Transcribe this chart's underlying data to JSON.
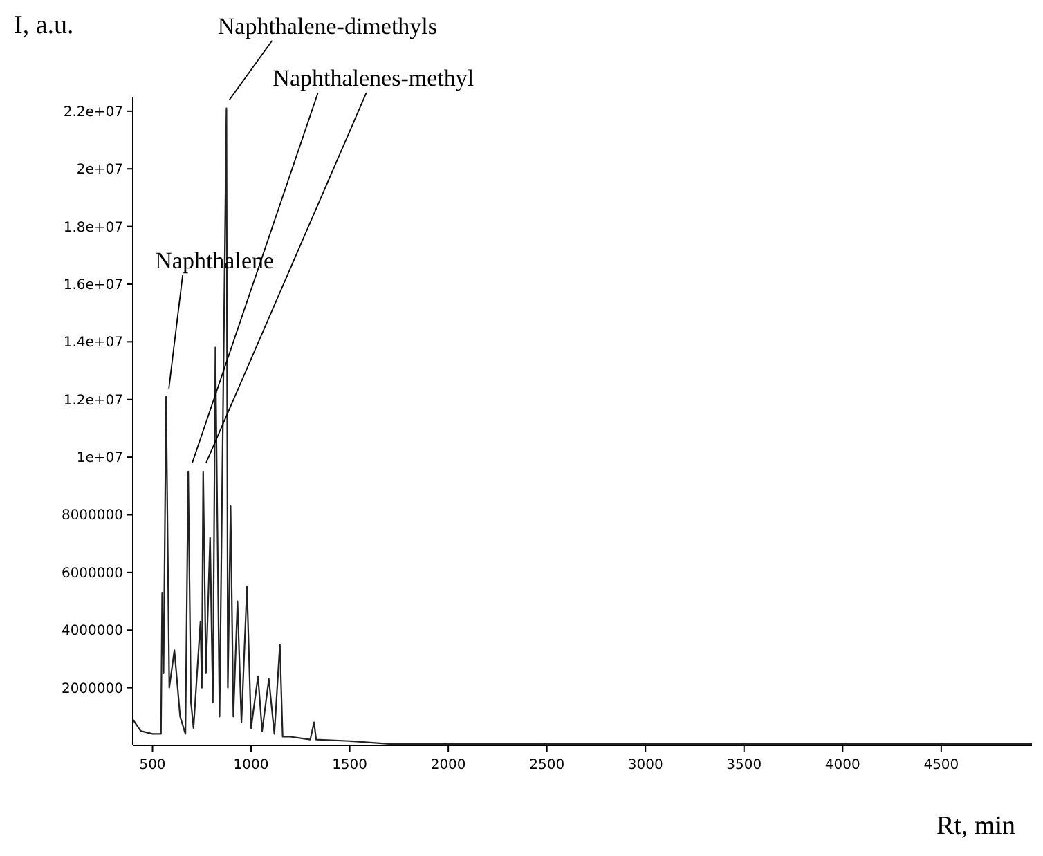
{
  "chart_data": {
    "type": "line",
    "xlabel": "Rt, min",
    "ylabel": "I, a.u.",
    "x": [
      400,
      440,
      500,
      543,
      549,
      556,
      569,
      585,
      611,
      640,
      667,
      681,
      695,
      708,
      743,
      750,
      757,
      771,
      792,
      806,
      819,
      840,
      875,
      882,
      896,
      910,
      931,
      951,
      979,
      1000,
      1035,
      1056,
      1090,
      1118,
      1146,
      1160,
      1200,
      1300,
      1319,
      1330,
      1500,
      1700,
      2500,
      4960
    ],
    "series": [
      {
        "color": "#222222",
        "values": [
          900000,
          500000,
          400000,
          400000,
          5300000,
          2500000,
          12100000,
          2000000,
          3300000,
          1000000,
          400000,
          9500000,
          1500000,
          600000,
          4300000,
          2000000,
          9500000,
          2500000,
          7200000,
          1500000,
          13800000,
          1000000,
          22100000,
          2000000,
          8300000,
          1000000,
          5000000,
          800000,
          5500000,
          600000,
          2400000,
          500000,
          2300000,
          400000,
          3500000,
          300000,
          300000,
          200000,
          800000,
          200000,
          150000,
          50000,
          50000,
          50000
        ]
      }
    ],
    "xlim": [
      400,
      4960
    ],
    "xticks": [
      500,
      1000,
      1500,
      2000,
      2500,
      3000,
      3500,
      4000,
      4500
    ],
    "ylim": [
      0,
      22500000
    ],
    "yticks": [
      2000000,
      4000000,
      6000000,
      8000000,
      {
        "value": 10000000,
        "label": "1e+07"
      },
      {
        "value": 12000000,
        "label": "1.2e+07"
      },
      {
        "value": 14000000,
        "label": "1.4e+07"
      },
      {
        "value": 16000000,
        "label": "1.6e+07"
      },
      {
        "value": 18000000,
        "label": "1.8e+07"
      },
      {
        "value": 20000000,
        "label": "2e+07"
      },
      {
        "value": 22000000,
        "label": "2.2e+07"
      }
    ],
    "grid": false,
    "marker": "none",
    "line_style": "solid",
    "annotations": [
      {
        "text": "Naphthalene",
        "x": 569,
        "y": 12100000
      },
      {
        "text": "Naphthalene-dimethyls",
        "x": 875,
        "y": 22100000
      },
      {
        "text": "Naphthalenes-methyl",
        "x": 757,
        "y": 9500000
      }
    ]
  }
}
